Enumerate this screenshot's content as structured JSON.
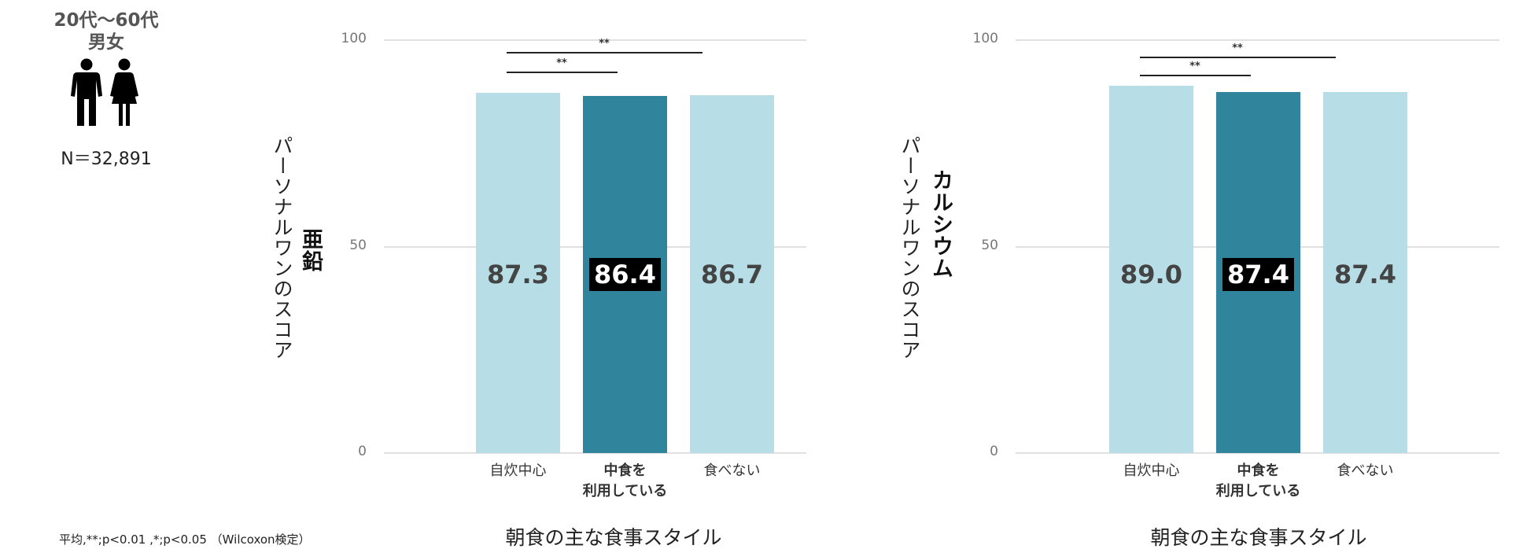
{
  "header": {
    "age_range": "20代～60代",
    "gender": "男女",
    "sample_size": "N＝32,891",
    "icon": "man-woman-icon"
  },
  "footnote": "平均,**;p<0.01 ,*;p<0.05 （Wilcoxon検定）",
  "colors": {
    "light": "#b7dee7",
    "dark": "#30849c",
    "label_box": "#000000"
  },
  "chart_data": [
    {
      "type": "bar",
      "ylabel_main": "亜鉛",
      "ylabel_sub": "パーソナルワンのスコア",
      "xlabel": "朝食の主な食事スタイル",
      "categories": [
        "自炊中心",
        "中食を利用している",
        "食べない"
      ],
      "category_lines": [
        [
          "自炊中心"
        ],
        [
          "中食を",
          "利用している"
        ],
        [
          "食べない"
        ]
      ],
      "values": [
        87.3,
        86.4,
        86.7
      ],
      "value_labels": [
        "87.3",
        "86.4",
        "86.7"
      ],
      "highlight": 1,
      "ylim": [
        0,
        100
      ],
      "yticks": [
        "0",
        "50",
        "100"
      ],
      "grid": true,
      "significance": [
        {
          "from": 0,
          "to": 1,
          "label": "**"
        },
        {
          "from": 0,
          "to": 2,
          "label": "**"
        }
      ]
    },
    {
      "type": "bar",
      "ylabel_main": "カルシウム",
      "ylabel_sub": "パーソナルワンのスコア",
      "xlabel": "朝食の主な食事スタイル",
      "categories": [
        "自炊中心",
        "中食を利用している",
        "食べない"
      ],
      "category_lines": [
        [
          "自炊中心"
        ],
        [
          "中食を",
          "利用している"
        ],
        [
          "食べない"
        ]
      ],
      "values": [
        89.0,
        87.4,
        87.4
      ],
      "value_labels": [
        "89.0",
        "87.4",
        "87.4"
      ],
      "highlight": 1,
      "ylim": [
        0,
        100
      ],
      "yticks": [
        "0",
        "50",
        "100"
      ],
      "grid": true,
      "significance": [
        {
          "from": 0,
          "to": 1,
          "label": "**"
        },
        {
          "from": 0,
          "to": 2,
          "label": "**"
        }
      ]
    }
  ]
}
